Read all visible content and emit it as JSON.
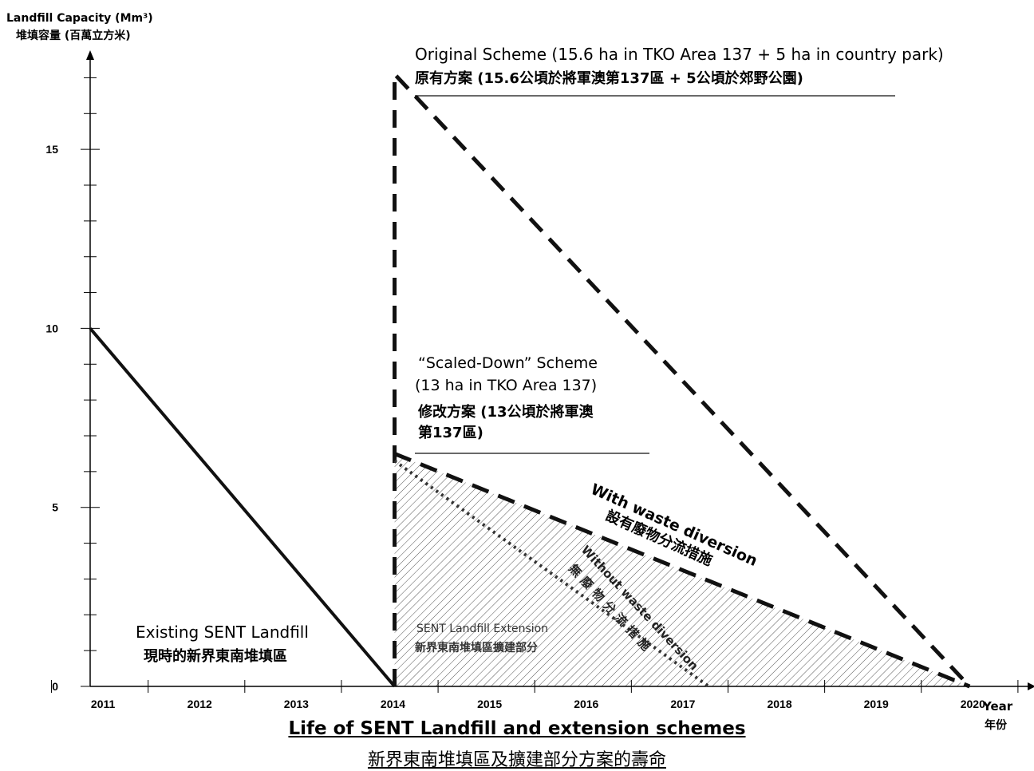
{
  "chart_data": {
    "type": "line",
    "title": "Life of SENT Landfill and extension schemes",
    "title_zh": "新界東南堆填區及擴建部分方案的壽命",
    "ylabel": "Landfill Capacity (Mm³)",
    "ylabel_zh": "堆填容量 (百萬立方米)",
    "xlabel": "Year",
    "xlabel_zh": "年份",
    "xlim": [
      2010.9,
      2020.6
    ],
    "ylim": [
      0,
      17.5
    ],
    "x_ticks": [
      2011,
      2012,
      2013,
      2014,
      2015,
      2016,
      2017,
      2018,
      2019,
      2020
    ],
    "y_ticks": [
      0,
      5,
      10,
      15
    ],
    "series": [
      {
        "name": "Existing SENT Landfill",
        "name_zh": "現時的新界東南堆填區",
        "style": "solid",
        "points": [
          [
            2010.9,
            10
          ],
          [
            2014.05,
            0
          ]
        ]
      },
      {
        "name": "Original Scheme (15.6 ha in TKO Area 137 + 5 ha in country park)",
        "name_zh": "原有方案 (15.6公頃於將軍澳第137區 + 5公頃於郊野公園)",
        "style": "dashed",
        "points": [
          [
            2014.05,
            0
          ],
          [
            2014.05,
            17.1
          ],
          [
            2020.0,
            0
          ]
        ]
      },
      {
        "name": "“Scaled-Down” Scheme",
        "name_lines": [
          "“Scaled-Down” Scheme",
          "(13 ha in TKO Area 137)",
          "修改方案 (13公頃於將軍澳",
          "第137區)"
        ],
        "style": "dashed",
        "points": [
          [
            2014.05,
            6.5
          ],
          [
            2020.0,
            0
          ]
        ]
      },
      {
        "name": "Without waste diversion",
        "name_zh": "無廢物分流措施",
        "style": "dotted",
        "points": [
          [
            2014.05,
            6.3
          ],
          [
            2017.3,
            0
          ]
        ]
      }
    ],
    "annotations": {
      "with_diversion": "With waste diversion",
      "with_diversion_zh": "設有廢物分流措施",
      "without_diversion": "Without waste diversion",
      "without_diversion_zh": "無廢物分流措施",
      "extension": "SENT Landfill Extension",
      "extension_zh": "新界東南堆填區擴建部分",
      "existing": "Existing SENT Landfill",
      "existing_zh": "現時的新界東南堆填區",
      "original": "Original Scheme (15.6 ha in TKO Area 137 + 5 ha in country park)",
      "original_zh": "原有方案 (15.6公頃於將軍澳第137區 + 5公頃於郊野公園)",
      "scaled": [
        "“Scaled-Down” Scheme",
        "(13 ha in TKO Area 137)",
        "修改方案 (13公頃於將軍澳",
        "第137區)"
      ]
    },
    "shaded_region": "SENT Landfill Extension",
    "grid": false
  }
}
